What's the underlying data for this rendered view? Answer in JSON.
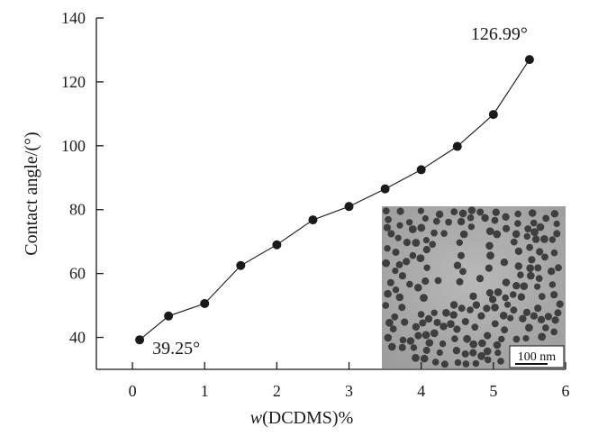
{
  "chart_data": {
    "type": "line",
    "xlabel_prefix": "w",
    "xlabel_rest": "(DCDMS)%",
    "ylabel": "Contact angle/(°)",
    "xlim": [
      -0.5,
      6
    ],
    "ylim": [
      30,
      140
    ],
    "xticks": [
      0,
      1,
      2,
      3,
      4,
      5,
      6
    ],
    "yticks": [
      40,
      60,
      80,
      100,
      120,
      140
    ],
    "grid": false,
    "x": [
      0.1,
      0.5,
      1.0,
      1.5,
      2.0,
      2.5,
      3.0,
      3.5,
      4.0,
      4.5,
      5.0,
      5.5
    ],
    "y": [
      39.25,
      46.7,
      50.6,
      62.5,
      69.0,
      76.8,
      81.0,
      86.5,
      92.5,
      99.8,
      109.8,
      126.99
    ],
    "annotations": [
      {
        "text": "39.25°",
        "x": 0.1,
        "y": 39.25
      },
      {
        "text": "126.99°",
        "x": 5.5,
        "y": 126.99
      }
    ],
    "inset": {
      "type": "TEM micrograph",
      "scale_bar_label": "100 nm"
    }
  }
}
